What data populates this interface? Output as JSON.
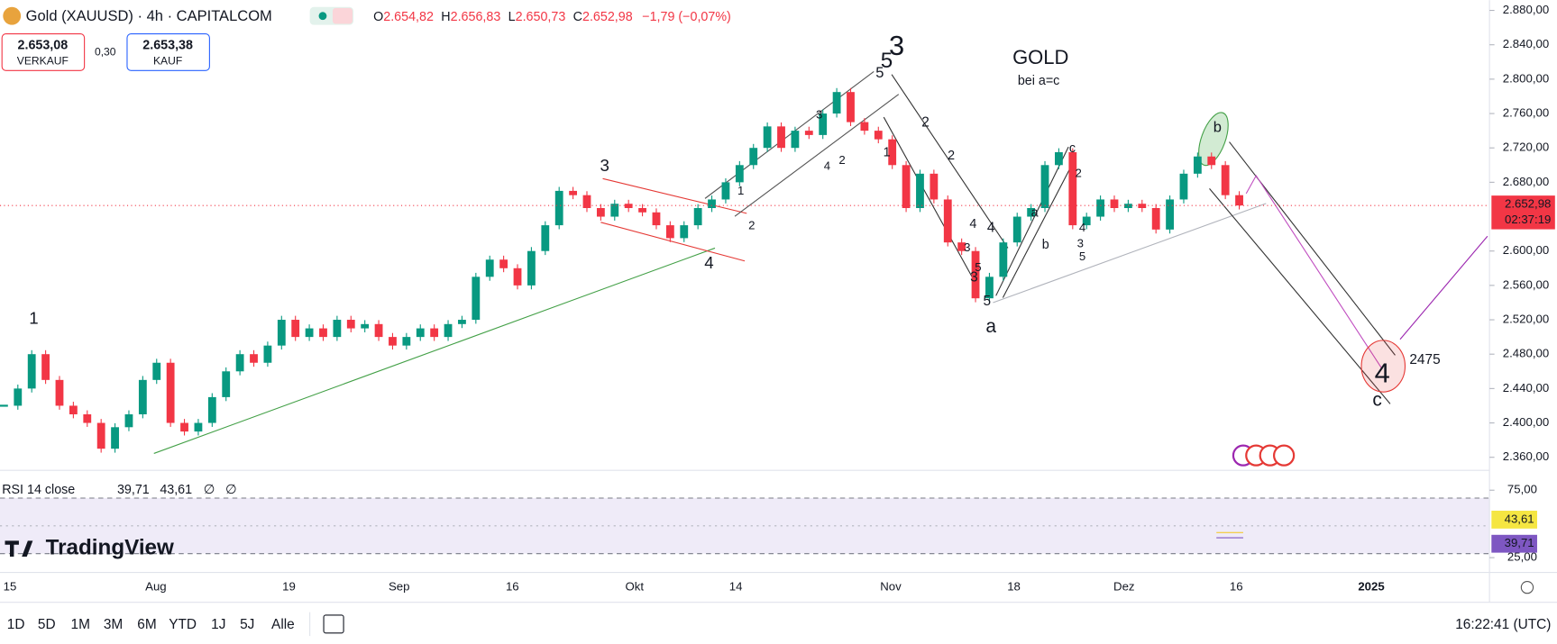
{
  "header": {
    "symbol": "Gold (XAUUSD) · 4h · CAPITALCOM",
    "ohlc": [
      {
        "key": "O",
        "value": "2.654,82"
      },
      {
        "key": "H",
        "value": "2.656,83"
      },
      {
        "key": "L",
        "value": "2.650,73"
      },
      {
        "key": "C",
        "value": "2.652,98"
      }
    ],
    "change": "−1,79 (−0,07%)"
  },
  "trade": {
    "sell_price": "2.653,08",
    "sell_label": "VERKAUF",
    "spread": "0,30",
    "buy_price": "2.653,38",
    "buy_label": "KAUF"
  },
  "chart_data": {
    "type": "candlestick",
    "ylim": [
      2346,
      2892
    ],
    "yticks": [
      {
        "value": 2880,
        "label": "2.880,00"
      },
      {
        "value": 2840,
        "label": "2.840,00"
      },
      {
        "value": 2800,
        "label": "2.800,00"
      },
      {
        "value": 2760,
        "label": "2.760,00"
      },
      {
        "value": 2720,
        "label": "2.720,00"
      },
      {
        "value": 2680,
        "label": "2.680,00"
      },
      {
        "value": 2600,
        "label": "2.600,00"
      },
      {
        "value": 2560,
        "label": "2.560,00"
      },
      {
        "value": 2520,
        "label": "2.520,00"
      },
      {
        "value": 2480,
        "label": "2.480,00"
      },
      {
        "value": 2440,
        "label": "2.440,00"
      },
      {
        "value": 2400,
        "label": "2.400,00"
      },
      {
        "value": 2360,
        "label": "2.360,00"
      }
    ],
    "values": [
      2420,
      2440,
      2480,
      2450,
      2420,
      2410,
      2400,
      2370,
      2395,
      2410,
      2450,
      2470,
      2400,
      2390,
      2400,
      2430,
      2460,
      2480,
      2470,
      2490,
      2520,
      2500,
      2510,
      2500,
      2520,
      2510,
      2515,
      2500,
      2490,
      2500,
      2510,
      2500,
      2515,
      2520,
      2570,
      2590,
      2580,
      2560,
      2600,
      2630,
      2670,
      2665,
      2650,
      2640,
      2655,
      2650,
      2645,
      2630,
      2615,
      2630,
      2650,
      2660,
      2680,
      2700,
      2720,
      2745,
      2720,
      2740,
      2735,
      2760,
      2785,
      2750,
      2740,
      2730,
      2700,
      2650,
      2690,
      2660,
      2610,
      2600,
      2545,
      2570,
      2610,
      2640,
      2650,
      2700,
      2715,
      2630,
      2640,
      2660,
      2650,
      2655,
      2650,
      2625,
      2660,
      2690,
      2710,
      2700,
      2665,
      2653
    ],
    "last_price": 2652.98,
    "last_label": "2.652,98",
    "countdown": "02:37:19"
  },
  "time_axis": [
    "15",
    "Aug",
    "19",
    "Sep",
    "16",
    "Okt",
    "14",
    "Nov",
    "18",
    "Dez",
    "16",
    "2025"
  ],
  "annotations": [
    {
      "text": "1",
      "color": "#2e7d32"
    },
    {
      "text": "3",
      "color": "#2e7d32"
    },
    {
      "text": "4",
      "color": "#2e7d32"
    },
    {
      "text": "5",
      "color": "#2e7d32"
    },
    {
      "text": "5",
      "color": "#000000"
    },
    {
      "text": "3",
      "color": "#e53935"
    },
    {
      "text": "1",
      "color": "#1e63d6"
    },
    {
      "text": "2",
      "color": "#1e63d6"
    },
    {
      "text": "3",
      "color": "#1e63d6"
    },
    {
      "text": "4",
      "color": "#1e63d6"
    },
    {
      "text": "2",
      "color": "#787b86"
    },
    {
      "text": "1",
      "color": "#000000"
    },
    {
      "text": "2",
      "color": "#000000"
    },
    {
      "text": "2",
      "color": "#787b86"
    },
    {
      "text": "4",
      "color": "#787b86"
    },
    {
      "text": "4",
      "color": "#000000"
    },
    {
      "text": "3",
      "color": "#787b86"
    },
    {
      "text": "3",
      "color": "#000000"
    },
    {
      "text": "5",
      "color": "#787b86"
    },
    {
      "text": "5",
      "color": "#000000"
    },
    {
      "text": "a",
      "color": "#e53935"
    },
    {
      "text": "a",
      "color": "#1e63d6"
    },
    {
      "text": "b",
      "color": "#1e63d6"
    },
    {
      "text": "c",
      "color": "#1e63d6"
    },
    {
      "text": "2",
      "color": "#787b86"
    },
    {
      "text": "4",
      "color": "#787b86"
    },
    {
      "text": "3",
      "color": "#787b86"
    },
    {
      "text": "5",
      "color": "#787b86"
    },
    {
      "text": "b",
      "color": "#e53935"
    },
    {
      "text": "4",
      "color": "#e53935"
    },
    {
      "text": "c",
      "color": "#e53935"
    },
    {
      "text": "2475",
      "color": "#e53935"
    },
    {
      "text": "GOLD",
      "color": "#ff9800"
    },
    {
      "text": "bei a=c",
      "color": "#e53935"
    }
  ],
  "rsi": {
    "title": "RSI 14 close",
    "value": 39.71,
    "value_label": "39,71",
    "ma": 43.61,
    "ma_label": "43,61",
    "na": [
      "∅",
      "∅"
    ],
    "ylim": [
      14,
      89
    ],
    "yticks": [
      {
        "value": 75,
        "label": "75,00"
      },
      {
        "value": 25,
        "label": "25,00"
      }
    ]
  },
  "logo": "TradingView",
  "toolbar": {
    "ranges": [
      "1D",
      "5D",
      "1M",
      "3M",
      "6M",
      "YTD",
      "1J",
      "5J",
      "Alle"
    ],
    "clock": "16:22:41 (UTC)"
  }
}
